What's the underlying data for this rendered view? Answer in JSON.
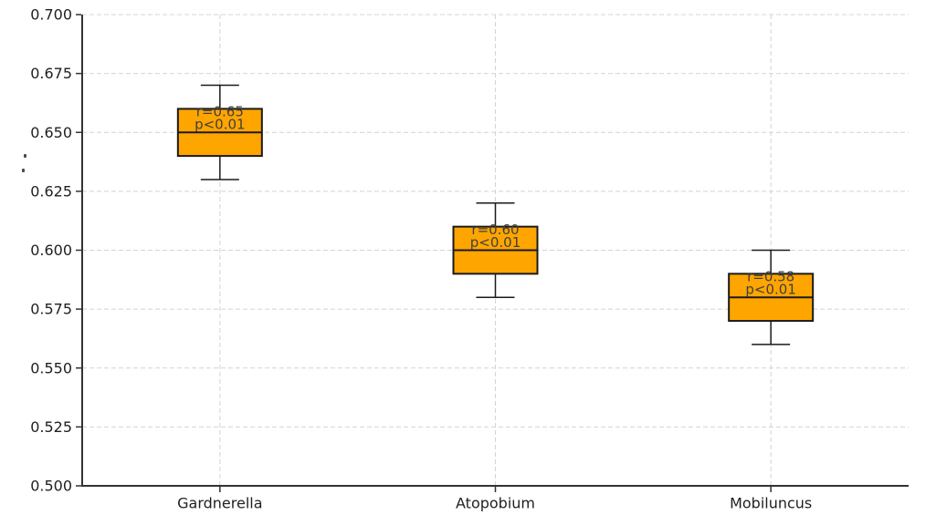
{
  "figure": {
    "background": "#ffffff"
  },
  "chart_data": {
    "type": "box",
    "title": "",
    "xlabel": "",
    "ylabel": "",
    "grid": true,
    "legend": false,
    "categories": [
      "Gardnerella",
      "Atopobium",
      "Mobiluncus"
    ],
    "ylim": [
      0.5,
      0.7
    ],
    "yticks": [
      0.5,
      0.525,
      0.55,
      0.575,
      0.6,
      0.625,
      0.65,
      0.675,
      0.7
    ],
    "ytick_labels": [
      "0.500",
      "0.525",
      "0.550",
      "0.575",
      "0.600",
      "0.625",
      "0.650",
      "0.675",
      "0.700"
    ],
    "series": [
      {
        "category": "Gardnerella",
        "whisker_low": 0.63,
        "q1": 0.64,
        "median": 0.65,
        "q3": 0.66,
        "whisker_high": 0.67,
        "annotation_line1": "r=0.65",
        "annotation_line2": "p<0.01"
      },
      {
        "category": "Atopobium",
        "whisker_low": 0.58,
        "q1": 0.59,
        "median": 0.6,
        "q3": 0.61,
        "whisker_high": 0.62,
        "annotation_line1": "r=0.60",
        "annotation_line2": "p<0.01"
      },
      {
        "category": "Mobiluncus",
        "whisker_low": 0.56,
        "q1": 0.57,
        "median": 0.58,
        "q3": 0.59,
        "whisker_high": 0.6,
        "annotation_line1": "r=0.58",
        "annotation_line2": "p<0.01"
      }
    ],
    "colors": {
      "box_fill": "#FFA500",
      "box_edge": "#1a1a1a",
      "median": "#1a1a1a",
      "whisker": "#1a1a1a",
      "grid": "#d4d4d4",
      "axis": "#333333",
      "tick_label": "#1f1f1f",
      "category_label": "#1f1f1f",
      "annotation": "#404040"
    }
  }
}
